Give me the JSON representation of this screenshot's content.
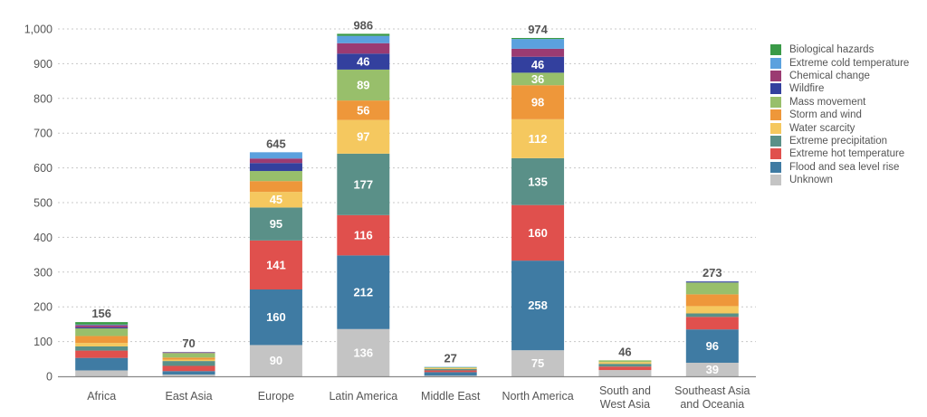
{
  "chart_data": {
    "type": "bar",
    "stacked": true,
    "title": "",
    "xlabel": "",
    "ylabel": "",
    "ylim": [
      0,
      1000
    ],
    "yticks": [
      0,
      100,
      200,
      300,
      400,
      500,
      600,
      700,
      800,
      900,
      1000
    ],
    "ytick_labels": [
      "0",
      "100",
      "200",
      "300",
      "400",
      "500",
      "600",
      "700",
      "800",
      "900",
      "1,000"
    ],
    "grid": "horizontal dotted",
    "legend_position": "right",
    "categories": [
      "Africa",
      "East Asia",
      "Europe",
      "Latin America",
      "Middle East",
      "North America",
      "South and West Asia",
      "Southeast Asia and Oceania"
    ],
    "category_lines": [
      [
        "Africa"
      ],
      [
        "East Asia"
      ],
      [
        "Europe"
      ],
      [
        "Latin America"
      ],
      [
        "Middle East"
      ],
      [
        "North America"
      ],
      [
        "South and",
        "West Asia"
      ],
      [
        "Southeast Asia",
        "and Oceania"
      ]
    ],
    "totals": [
      156,
      70,
      645,
      986,
      27,
      974,
      46,
      273
    ],
    "series": [
      {
        "name": "Unknown",
        "color": "#c4c4c4",
        "values": [
          17,
          5,
          90,
          136,
          2,
          75,
          18,
          39
        ],
        "labeled": [
          false,
          false,
          true,
          true,
          false,
          true,
          false,
          true
        ]
      },
      {
        "name": "Flood and sea level rise",
        "color": "#3f7ba3",
        "values": [
          36,
          10,
          160,
          212,
          10,
          258,
          0,
          96
        ],
        "labeled": [
          false,
          false,
          true,
          true,
          false,
          true,
          false,
          true
        ]
      },
      {
        "name": "Extreme hot temperature",
        "color": "#e0504d",
        "values": [
          21,
          15,
          141,
          116,
          5,
          160,
          10,
          36
        ],
        "labeled": [
          false,
          false,
          true,
          true,
          false,
          true,
          false,
          false
        ]
      },
      {
        "name": "Extreme precipitation",
        "color": "#5a9088",
        "values": [
          12,
          14,
          95,
          177,
          4,
          135,
          8,
          10
        ],
        "labeled": [
          false,
          false,
          true,
          true,
          false,
          true,
          false,
          false
        ]
      },
      {
        "name": "Water scarcity",
        "color": "#f5c85f",
        "values": [
          10,
          4,
          45,
          97,
          2,
          112,
          5,
          21
        ],
        "labeled": [
          false,
          false,
          true,
          true,
          false,
          true,
          false,
          false
        ]
      },
      {
        "name": "Storm and wind",
        "color": "#ee973a",
        "values": [
          20,
          6,
          31,
          56,
          1,
          98,
          0,
          34
        ],
        "labeled": [
          false,
          false,
          false,
          true,
          false,
          true,
          false,
          false
        ]
      },
      {
        "name": "Mass movement",
        "color": "#98bf6b",
        "values": [
          22,
          13,
          29,
          89,
          2,
          36,
          5,
          34
        ],
        "labeled": [
          false,
          false,
          false,
          true,
          false,
          true,
          false,
          false
        ]
      },
      {
        "name": "Wildfire",
        "color": "#33409e",
        "values": [
          3,
          0,
          23,
          46,
          0,
          46,
          0,
          3
        ],
        "labeled": [
          false,
          false,
          false,
          true,
          false,
          true,
          false,
          false
        ]
      },
      {
        "name": "Chemical change",
        "color": "#9b3b72",
        "values": [
          6,
          2,
          13,
          30,
          0,
          23,
          0,
          0
        ],
        "labeled": [
          false,
          false,
          false,
          false,
          false,
          false,
          false,
          false
        ]
      },
      {
        "name": "Extreme cold temperature",
        "color": "#5ba1de",
        "values": [
          2,
          1,
          18,
          21,
          1,
          28,
          0,
          0
        ],
        "labeled": [
          false,
          false,
          false,
          false,
          false,
          false,
          false,
          false
        ]
      },
      {
        "name": "Biological hazards",
        "color": "#3a9a47",
        "values": [
          7,
          0,
          0,
          6,
          0,
          3,
          0,
          0
        ],
        "labeled": [
          false,
          false,
          false,
          false,
          false,
          false,
          false,
          false
        ]
      }
    ],
    "legend_order": [
      "Biological hazards",
      "Extreme cold temperature",
      "Chemical change",
      "Wildfire",
      "Mass movement",
      "Storm and wind",
      "Water scarcity",
      "Extreme precipitation",
      "Extreme hot temperature",
      "Flood and sea level rise",
      "Unknown"
    ]
  }
}
